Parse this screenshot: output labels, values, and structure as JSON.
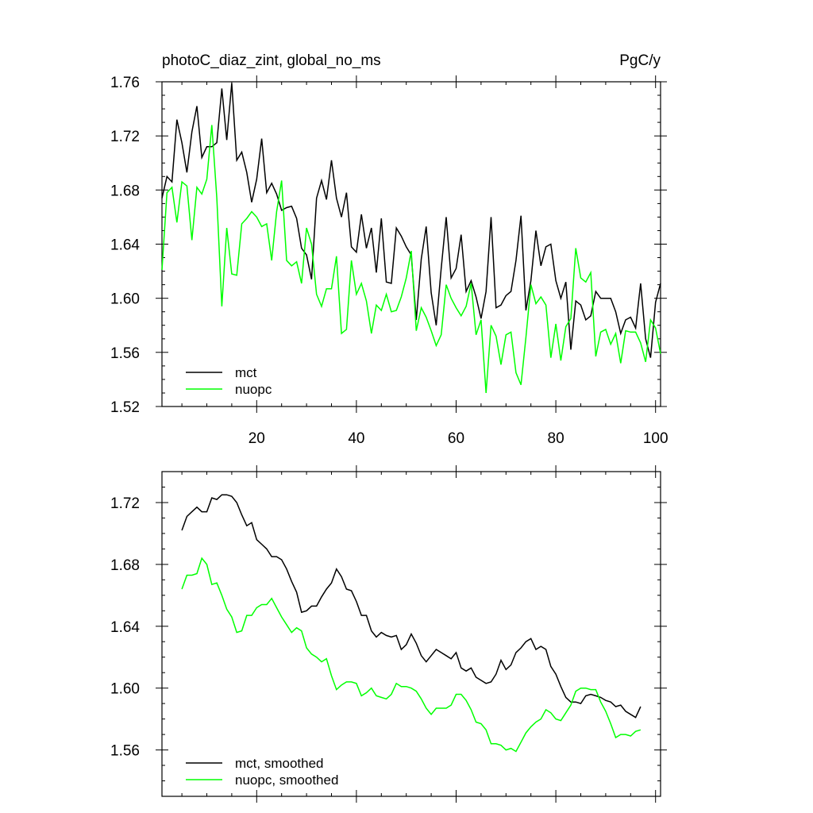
{
  "chart_data": [
    {
      "type": "line",
      "title": "photoC_diaz_zint, global_no_ms",
      "units": "PgC/y",
      "xlabel": "",
      "ylabel": "",
      "xlim": [
        1,
        101
      ],
      "ylim": [
        1.52,
        1.76
      ],
      "xticks": [
        20,
        40,
        60,
        80,
        100
      ],
      "xtick_labels": [
        "20",
        "40",
        "60",
        "80",
        "100"
      ],
      "yticks": [
        1.52,
        1.56,
        1.6,
        1.64,
        1.68,
        1.72,
        1.76
      ],
      "ytick_labels": [
        "1.52",
        "1.56",
        "1.60",
        "1.64",
        "1.68",
        "1.72",
        "1.76"
      ],
      "legend_position": "bottom-left",
      "series": [
        {
          "name": "mct",
          "color": "#000000",
          "x": [
            1,
            2,
            3,
            4,
            5,
            6,
            7,
            8,
            9,
            10,
            11,
            12,
            13,
            14,
            15,
            16,
            17,
            18,
            19,
            20,
            21,
            22,
            23,
            24,
            25,
            26,
            27,
            28,
            29,
            30,
            31,
            32,
            33,
            34,
            35,
            36,
            37,
            38,
            39,
            40,
            41,
            42,
            43,
            44,
            45,
            46,
            47,
            48,
            49,
            50,
            51,
            52,
            53,
            54,
            55,
            56,
            57,
            58,
            59,
            60,
            61,
            62,
            63,
            64,
            65,
            66,
            67,
            68,
            69,
            70,
            71,
            72,
            73,
            74,
            75,
            76,
            77,
            78,
            79,
            80,
            81,
            82,
            83,
            84,
            85,
            86,
            87,
            88,
            89,
            90,
            91,
            92,
            93,
            94,
            95,
            96,
            97,
            98,
            99,
            100,
            101
          ],
          "values": [
            1.674,
            1.69,
            1.686,
            1.732,
            1.715,
            1.693,
            1.723,
            1.742,
            1.704,
            1.712,
            1.712,
            1.715,
            1.755,
            1.717,
            1.759,
            1.702,
            1.708,
            1.693,
            1.671,
            1.688,
            1.718,
            1.678,
            1.685,
            1.677,
            1.665,
            1.667,
            1.668,
            1.659,
            1.637,
            1.632,
            1.614,
            1.674,
            1.687,
            1.673,
            1.702,
            1.674,
            1.66,
            1.678,
            1.638,
            1.634,
            1.662,
            1.637,
            1.652,
            1.619,
            1.659,
            1.612,
            1.611,
            1.652,
            1.646,
            1.638,
            1.632,
            1.584,
            1.629,
            1.653,
            1.604,
            1.58,
            1.622,
            1.66,
            1.615,
            1.622,
            1.647,
            1.605,
            1.613,
            1.601,
            1.585,
            1.605,
            1.66,
            1.593,
            1.595,
            1.602,
            1.605,
            1.628,
            1.661,
            1.591,
            1.613,
            1.65,
            1.624,
            1.638,
            1.64,
            1.613,
            1.6,
            1.612,
            1.562,
            1.598,
            1.595,
            1.584,
            1.587,
            1.605,
            1.6,
            1.6,
            1.6,
            1.59,
            1.574,
            1.584,
            1.586,
            1.578,
            1.611,
            1.57,
            1.556,
            1.597,
            1.611
          ]
        },
        {
          "name": "nuopc",
          "color": "#00ff00",
          "x": [
            1,
            2,
            3,
            4,
            5,
            6,
            7,
            8,
            9,
            10,
            11,
            12,
            13,
            14,
            15,
            16,
            17,
            18,
            19,
            20,
            21,
            22,
            23,
            24,
            25,
            26,
            27,
            28,
            29,
            30,
            31,
            32,
            33,
            34,
            35,
            36,
            37,
            38,
            39,
            40,
            41,
            42,
            43,
            44,
            45,
            46,
            47,
            48,
            49,
            50,
            51,
            52,
            53,
            54,
            55,
            56,
            57,
            58,
            59,
            60,
            61,
            62,
            63,
            64,
            65,
            66,
            67,
            68,
            69,
            70,
            71,
            72,
            73,
            74,
            75,
            76,
            77,
            78,
            79,
            80,
            81,
            82,
            83,
            84,
            85,
            86,
            87,
            88,
            89,
            90,
            91,
            92,
            93,
            94,
            95,
            96,
            97,
            98,
            99,
            100,
            101
          ],
          "values": [
            1.621,
            1.678,
            1.682,
            1.656,
            1.686,
            1.683,
            1.643,
            1.682,
            1.677,
            1.688,
            1.728,
            1.674,
            1.594,
            1.652,
            1.618,
            1.617,
            1.655,
            1.659,
            1.664,
            1.66,
            1.653,
            1.655,
            1.628,
            1.664,
            1.687,
            1.628,
            1.624,
            1.627,
            1.611,
            1.652,
            1.64,
            1.603,
            1.594,
            1.607,
            1.607,
            1.631,
            1.574,
            1.577,
            1.628,
            1.603,
            1.611,
            1.598,
            1.574,
            1.595,
            1.591,
            1.603,
            1.59,
            1.591,
            1.601,
            1.615,
            1.635,
            1.576,
            1.593,
            1.586,
            1.576,
            1.565,
            1.573,
            1.61,
            1.6,
            1.593,
            1.587,
            1.594,
            1.611,
            1.573,
            1.584,
            1.53,
            1.58,
            1.572,
            1.551,
            1.573,
            1.575,
            1.545,
            1.536,
            1.571,
            1.61,
            1.596,
            1.601,
            1.595,
            1.556,
            1.581,
            1.554,
            1.579,
            1.585,
            1.637,
            1.615,
            1.612,
            1.619,
            1.557,
            1.575,
            1.577,
            1.566,
            1.574,
            1.552,
            1.576,
            1.575,
            1.575,
            1.567,
            1.553,
            1.584,
            1.578,
            1.559
          ]
        }
      ]
    },
    {
      "type": "line",
      "title": "",
      "xlabel": "",
      "ylabel": "",
      "xlim": [
        1,
        101
      ],
      "ylim": [
        1.53,
        1.74
      ],
      "xticks": [
        20,
        40,
        60,
        80,
        100
      ],
      "xtick_labels": [],
      "yticks": [
        1.56,
        1.6,
        1.64,
        1.68,
        1.72
      ],
      "ytick_labels": [
        "1.56",
        "1.60",
        "1.64",
        "1.68",
        "1.72"
      ],
      "legend_position": "bottom-left",
      "series": [
        {
          "name": "mct, smoothed",
          "color": "#000000",
          "x": [
            5,
            6,
            7,
            8,
            9,
            10,
            11,
            12,
            13,
            14,
            15,
            16,
            17,
            18,
            19,
            20,
            21,
            22,
            23,
            24,
            25,
            26,
            27,
            28,
            29,
            30,
            31,
            32,
            33,
            34,
            35,
            36,
            37,
            38,
            39,
            40,
            41,
            42,
            43,
            44,
            45,
            46,
            47,
            48,
            49,
            50,
            51,
            52,
            53,
            54,
            55,
            56,
            57,
            58,
            59,
            60,
            61,
            62,
            63,
            64,
            65,
            66,
            67,
            68,
            69,
            70,
            71,
            72,
            73,
            74,
            75,
            76,
            77,
            78,
            79,
            80,
            81,
            82,
            83,
            84,
            85,
            86,
            87,
            88,
            89,
            90,
            91,
            92,
            93,
            94,
            95,
            96,
            97
          ],
          "values": [
            1.702,
            1.711,
            1.714,
            1.717,
            1.714,
            1.714,
            1.723,
            1.722,
            1.725,
            1.725,
            1.724,
            1.72,
            1.712,
            1.705,
            1.707,
            1.696,
            1.693,
            1.69,
            1.685,
            1.685,
            1.683,
            1.677,
            1.669,
            1.662,
            1.649,
            1.65,
            1.653,
            1.653,
            1.659,
            1.664,
            1.668,
            1.677,
            1.672,
            1.664,
            1.663,
            1.656,
            1.647,
            1.647,
            1.637,
            1.633,
            1.636,
            1.634,
            1.633,
            1.634,
            1.625,
            1.628,
            1.635,
            1.629,
            1.621,
            1.617,
            1.621,
            1.625,
            1.623,
            1.621,
            1.619,
            1.623,
            1.613,
            1.611,
            1.613,
            1.607,
            1.605,
            1.603,
            1.604,
            1.609,
            1.618,
            1.612,
            1.615,
            1.623,
            1.626,
            1.63,
            1.632,
            1.625,
            1.627,
            1.625,
            1.614,
            1.609,
            1.601,
            1.594,
            1.591,
            1.591,
            1.59,
            1.595,
            1.596,
            1.595,
            1.594,
            1.592,
            1.591,
            1.588,
            1.589,
            1.585,
            1.583,
            1.581,
            1.588
          ]
        },
        {
          "name": "nuopc, smoothed",
          "color": "#00ff00",
          "x": [
            5,
            6,
            7,
            8,
            9,
            10,
            11,
            12,
            13,
            14,
            15,
            16,
            17,
            18,
            19,
            20,
            21,
            22,
            23,
            24,
            25,
            26,
            27,
            28,
            29,
            30,
            31,
            32,
            33,
            34,
            35,
            36,
            37,
            38,
            39,
            40,
            41,
            42,
            43,
            44,
            45,
            46,
            47,
            48,
            49,
            50,
            51,
            52,
            53,
            54,
            55,
            56,
            57,
            58,
            59,
            60,
            61,
            62,
            63,
            64,
            65,
            66,
            67,
            68,
            69,
            70,
            71,
            72,
            73,
            74,
            75,
            76,
            77,
            78,
            79,
            80,
            81,
            82,
            83,
            84,
            85,
            86,
            87,
            88,
            89,
            90,
            91,
            92,
            93,
            94,
            95,
            96,
            97
          ],
          "values": [
            1.664,
            1.673,
            1.673,
            1.674,
            1.684,
            1.68,
            1.667,
            1.668,
            1.66,
            1.651,
            1.646,
            1.636,
            1.637,
            1.647,
            1.647,
            1.652,
            1.654,
            1.654,
            1.658,
            1.652,
            1.646,
            1.641,
            1.636,
            1.639,
            1.637,
            1.626,
            1.622,
            1.62,
            1.617,
            1.619,
            1.608,
            1.599,
            1.602,
            1.604,
            1.604,
            1.603,
            1.595,
            1.597,
            1.6,
            1.595,
            1.594,
            1.593,
            1.596,
            1.603,
            1.601,
            1.601,
            1.6,
            1.598,
            1.593,
            1.587,
            1.583,
            1.587,
            1.587,
            1.587,
            1.589,
            1.596,
            1.596,
            1.592,
            1.586,
            1.578,
            1.577,
            1.573,
            1.564,
            1.564,
            1.563,
            1.56,
            1.561,
            1.559,
            1.565,
            1.571,
            1.575,
            1.578,
            1.58,
            1.586,
            1.584,
            1.58,
            1.579,
            1.584,
            1.589,
            1.598,
            1.6,
            1.6,
            1.599,
            1.599,
            1.591,
            1.585,
            1.577,
            1.568,
            1.57,
            1.57,
            1.569,
            1.572,
            1.573
          ]
        }
      ]
    }
  ]
}
